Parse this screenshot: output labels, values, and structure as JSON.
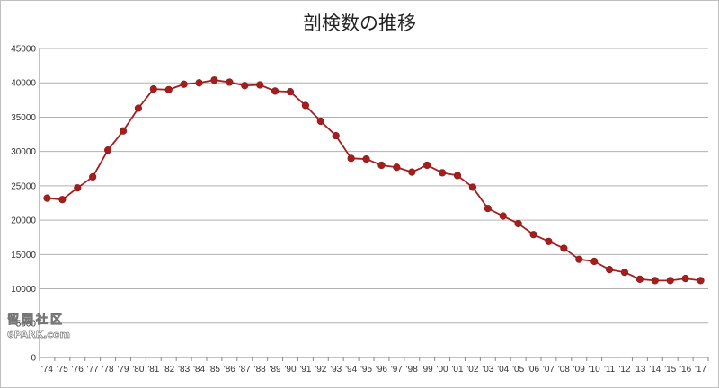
{
  "chart_data": {
    "type": "line",
    "title": "剖検数の推移",
    "xlabel": "",
    "ylabel": "",
    "ylim": [
      0,
      45000
    ],
    "yticks": [
      0,
      5000,
      10000,
      15000,
      20000,
      25000,
      30000,
      35000,
      40000,
      45000
    ],
    "ytick_labels": [
      "0",
      "5000",
      "10000",
      "15000",
      "20000",
      "25000",
      "30000",
      "35000",
      "40000",
      "45000"
    ],
    "grid": true,
    "legend": "none",
    "line_color": "#a31f1f",
    "categories": [
      "'74",
      "'75",
      "'76",
      "'77",
      "'78",
      "'79",
      "'80",
      "'81",
      "'82",
      "'83",
      "'84",
      "'85",
      "'86",
      "'87",
      "'88",
      "'89",
      "'90",
      "'91",
      "'92",
      "'93",
      "'94",
      "'95",
      "'96",
      "'97",
      "'98",
      "'99",
      "'00",
      "'01",
      "'02",
      "'03",
      "'04",
      "'05",
      "'06",
      "'07",
      "'08",
      "'09",
      "'10",
      "'11",
      "'12",
      "'13",
      "'14",
      "'15",
      "'16",
      "'17"
    ],
    "series": [
      {
        "values": [
          23200,
          23000,
          24700,
          26300,
          30200,
          33000,
          36300,
          39100,
          39000,
          39800,
          40000,
          40400,
          40100,
          39600,
          39700,
          38800,
          38700,
          36700,
          34400,
          32300,
          29000,
          28900,
          28000,
          27700,
          27000,
          28000,
          26900,
          26500,
          24800,
          21700,
          20600,
          19500,
          17900,
          16900,
          15900,
          14300,
          14000,
          12800,
          12400,
          11400,
          11200,
          11200,
          11500,
          11200
        ]
      }
    ]
  },
  "watermark": {
    "line1": "留园社区",
    "line2": "6PARK.com"
  }
}
